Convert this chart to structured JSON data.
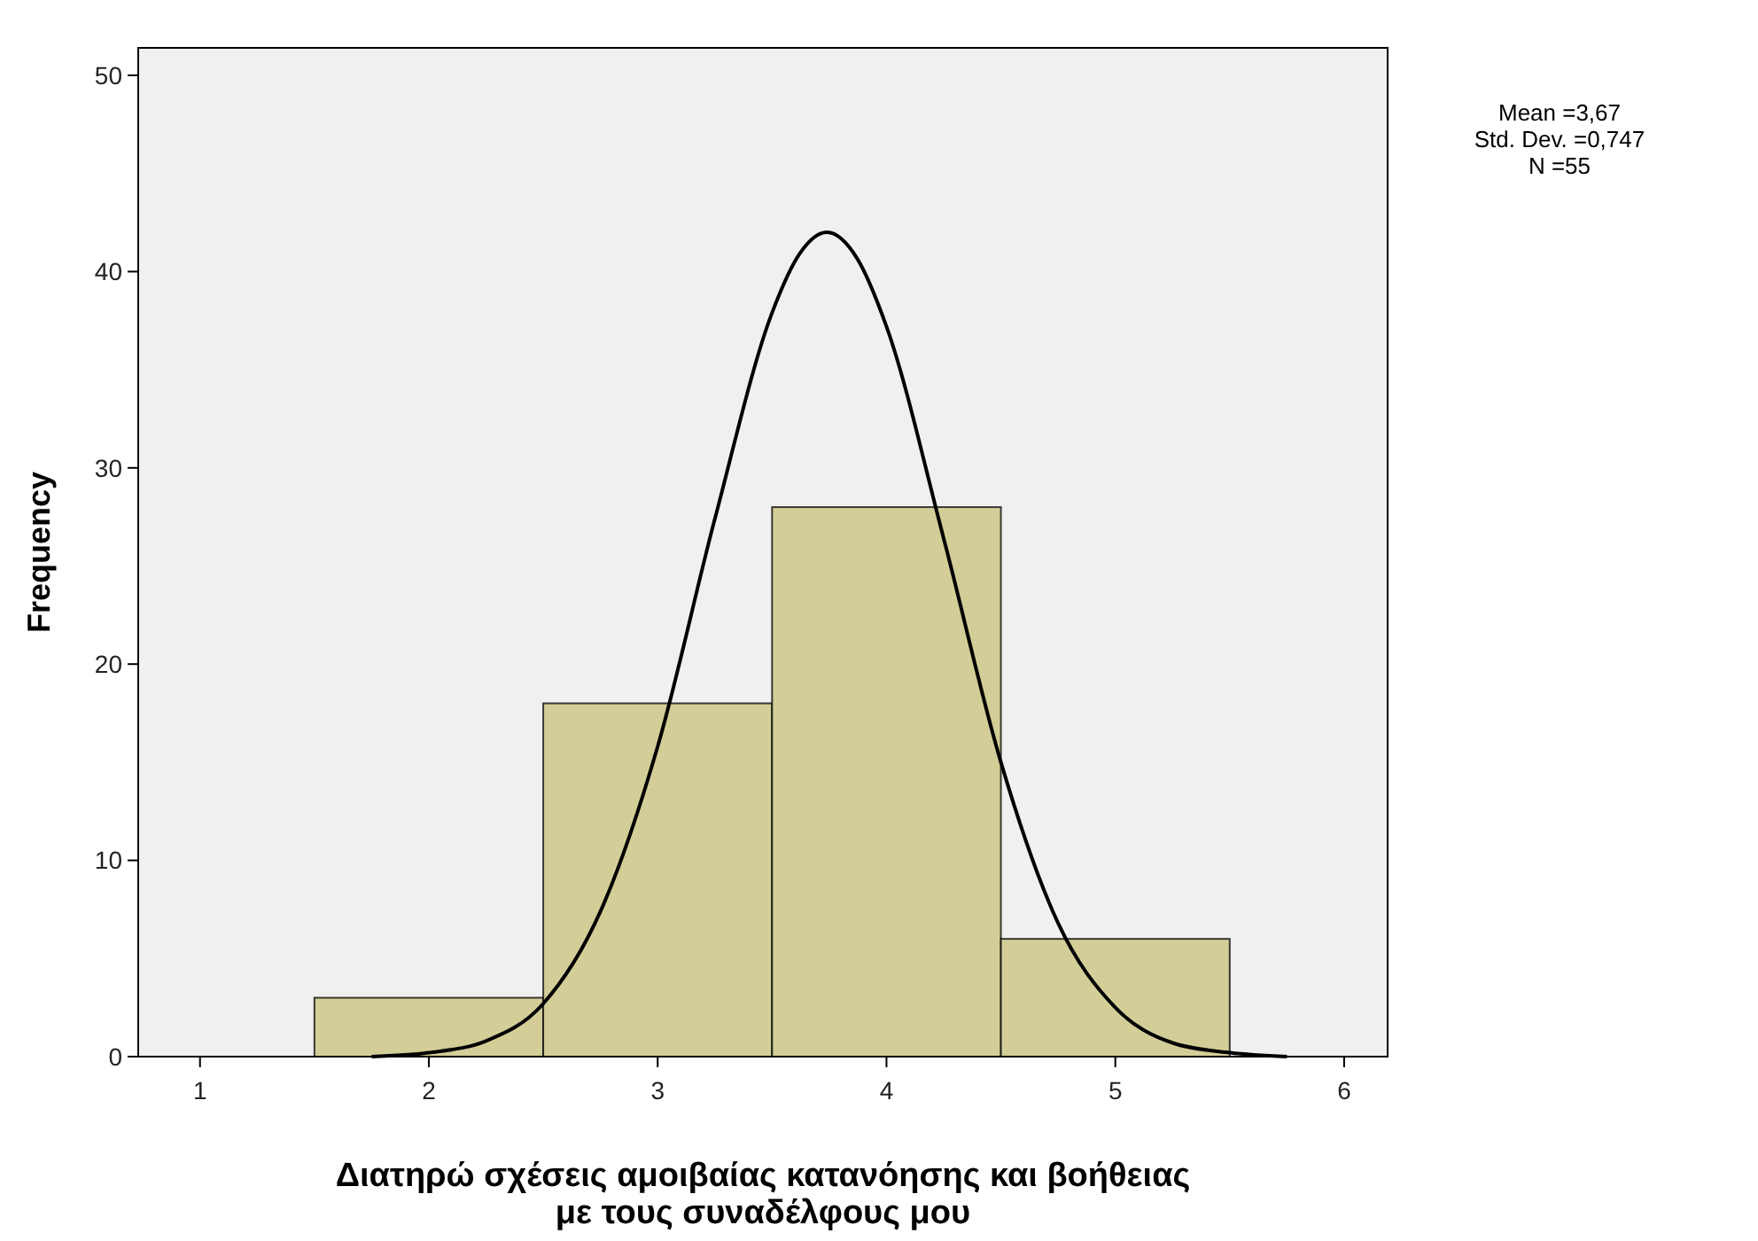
{
  "chart_data": {
    "type": "histogram",
    "xlabel": "Διατηρώ σχέσεις αμοιβαίας κατανόησης και βοήθειας\nμε τους συναδέλφους μου",
    "ylabel": "Frequency",
    "annotations": [
      "Mean =3,67",
      "Std. Dev. =0,747",
      "N =55"
    ],
    "bins": [
      1.5,
      2.5,
      3.5,
      4.5,
      5.5
    ],
    "series": [
      {
        "color": "#d3ce98",
        "values": [
          3,
          18,
          28,
          6
        ]
      },
      {
        "type": "line",
        "color": "#000000",
        "x": [
          1.75,
          2.0,
          2.25,
          2.5,
          2.75,
          3.0,
          3.25,
          3.5,
          3.62,
          3.74,
          3.87,
          4.0,
          4.25,
          4.5,
          4.75,
          5.0,
          5.25,
          5.5,
          5.75
        ],
        "values": [
          0.0,
          0.2,
          0.8,
          2.7,
          7.4,
          15.8,
          27.4,
          37.9,
          40.9,
          42.0,
          40.7,
          37.2,
          26.4,
          15.0,
          6.8,
          2.5,
          0.7,
          0.2,
          0.0
        ]
      }
    ],
    "xlim": [
      0.73,
      6.19
    ],
    "ylim": [
      0,
      51.4
    ],
    "xticks": [
      1,
      2,
      3,
      4,
      5,
      6
    ],
    "yticks": [
      0,
      10,
      20,
      30,
      40,
      50
    ],
    "grid": false,
    "marker": "none",
    "line_style": "solid"
  }
}
